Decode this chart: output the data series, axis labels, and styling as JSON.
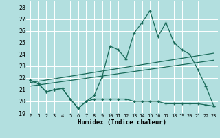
{
  "background_color": "#b2dfdf",
  "grid_color": "#ffffff",
  "line_color": "#1a6b5a",
  "x_label": "Humidex (Indice chaleur)",
  "ylim": [
    19,
    28.5
  ],
  "xlim": [
    -0.5,
    23.5
  ],
  "yticks": [
    19,
    20,
    21,
    22,
    23,
    24,
    25,
    26,
    27,
    28
  ],
  "xticks": [
    0,
    1,
    2,
    3,
    4,
    5,
    6,
    7,
    8,
    9,
    10,
    11,
    12,
    13,
    14,
    15,
    16,
    17,
    18,
    19,
    20,
    21,
    22,
    23
  ],
  "series1_x": [
    0,
    1,
    2,
    3,
    4,
    5,
    6,
    7,
    8,
    9,
    10,
    11,
    12,
    13,
    14,
    15,
    16,
    17,
    18,
    19,
    20,
    21,
    22,
    23
  ],
  "series1_y": [
    21.8,
    21.5,
    20.8,
    21.0,
    21.1,
    20.2,
    19.4,
    20.0,
    20.5,
    22.1,
    24.7,
    24.4,
    23.6,
    25.8,
    26.7,
    27.7,
    25.5,
    26.7,
    25.0,
    24.4,
    24.0,
    22.7,
    21.3,
    19.6
  ],
  "series2_x": [
    0,
    1,
    2,
    3,
    4,
    5,
    6,
    7,
    8,
    9,
    10,
    11,
    12,
    13,
    14,
    15,
    16,
    17,
    18,
    19,
    20,
    21,
    22,
    23
  ],
  "series2_y": [
    21.8,
    21.5,
    20.8,
    21.0,
    21.1,
    20.2,
    19.4,
    20.0,
    20.2,
    20.2,
    20.2,
    20.2,
    20.2,
    20.0,
    20.0,
    20.0,
    20.0,
    19.8,
    19.8,
    19.8,
    19.8,
    19.8,
    19.7,
    19.6
  ],
  "trend1_x": [
    0,
    23
  ],
  "trend1_y": [
    21.6,
    24.1
  ],
  "trend2_x": [
    0,
    23
  ],
  "trend2_y": [
    21.3,
    23.5
  ]
}
